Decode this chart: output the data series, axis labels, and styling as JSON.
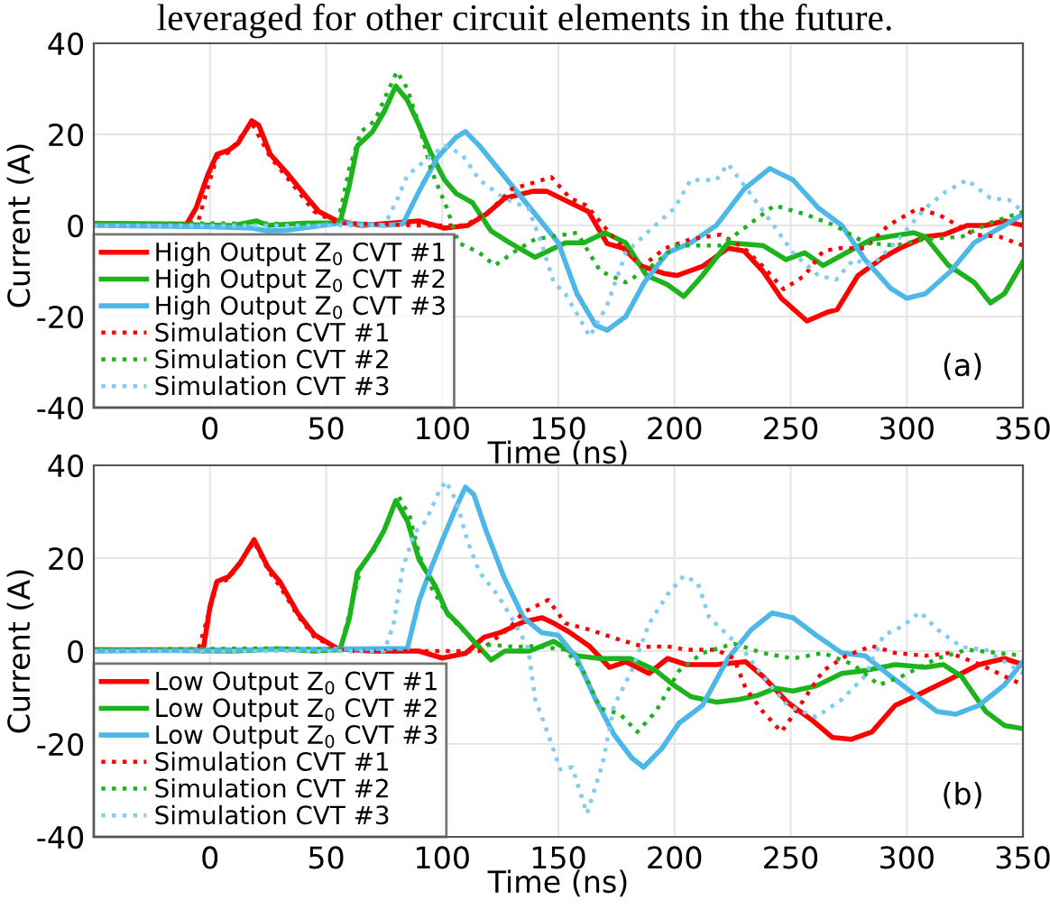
{
  "chart_data": [
    {
      "type": "line",
      "title": "leveraged for other circuit elements in the future.",
      "xlabel": "Time (ns)",
      "ylabel": "Current (A)",
      "xlim": [
        -50,
        350
      ],
      "ylim": [
        -40,
        40
      ],
      "xticks": [
        0,
        50,
        100,
        150,
        200,
        250,
        300,
        350
      ],
      "yticks": [
        -40,
        -20,
        0,
        20,
        40
      ],
      "grid": true,
      "legend": "bottom left",
      "annotations": [
        "(a)"
      ],
      "series": [
        {
          "name": "High Output Z$_{0}$ CVT #1",
          "color": "#ff0000",
          "line_style": "solid",
          "x": [
            -50,
            -10,
            -6,
            -1,
            3,
            8,
            12,
            18,
            21,
            26,
            34,
            42,
            47,
            54,
            65,
            90,
            101,
            111,
            119,
            127,
            139,
            145,
            155,
            163,
            171,
            178,
            186,
            196,
            201,
            212,
            223,
            230,
            238,
            246,
            257,
            266,
            270,
            279,
            290,
            297,
            308,
            316,
            326,
            334,
            342,
            350
          ],
          "values": [
            0.4,
            0.3,
            3.8,
            11,
            15.6,
            16.5,
            18,
            23,
            22,
            15.6,
            11,
            6,
            3,
            1.2,
            0,
            1,
            -0.6,
            0,
            2.5,
            6,
            7.5,
            7.5,
            5,
            3,
            -4,
            -5,
            -9,
            -10.6,
            -11,
            -9,
            -5,
            -5.6,
            -10,
            -16,
            -21,
            -19,
            -18.5,
            -11,
            -7,
            -5,
            -2.5,
            -2,
            0,
            0,
            1,
            0
          ]
        },
        {
          "name": "High Output Z$_{0}$ CVT #2",
          "color": "#1db31d",
          "line_style": "solid",
          "x": [
            -50,
            10,
            20,
            25,
            40,
            56,
            60,
            63.5,
            70,
            75,
            80,
            85,
            90,
            95,
            101,
            106,
            113,
            121,
            129,
            140,
            153,
            161,
            170,
            179,
            188,
            197,
            204,
            212,
            223,
            238,
            248,
            256,
            264,
            274,
            285,
            303,
            308,
            318,
            329,
            336,
            342,
            350
          ],
          "values": [
            0.5,
            0,
            1,
            0,
            0.5,
            0.6,
            8.8,
            17.5,
            20.6,
            25,
            30.6,
            27.5,
            22,
            16,
            10,
            7,
            5,
            -1.2,
            -3.8,
            -7,
            -3.8,
            -3.8,
            -1.6,
            -3.8,
            -11,
            -13,
            -15.6,
            -11,
            -3.8,
            -4.4,
            -7.5,
            -6,
            -8.8,
            -6,
            -3,
            -1.6,
            -2.5,
            -8.8,
            -12.5,
            -17,
            -15,
            -8
          ]
        },
        {
          "name": "High Output Z$_{0}$ CVT #3",
          "color": "#4db8e8",
          "line_style": "solid",
          "x": [
            -50,
            0,
            18,
            25,
            34,
            44,
            57,
            75,
            83,
            90,
            98,
            106,
            110,
            116,
            124,
            132,
            140,
            150,
            158,
            166,
            171,
            179,
            187,
            197,
            207,
            218,
            230,
            241,
            251,
            262,
            272,
            282,
            293,
            300,
            308,
            319,
            329,
            342,
            350
          ],
          "values": [
            0,
            -0.3,
            -0.6,
            -1.2,
            -1,
            -0.3,
            0.6,
            0,
            0.3,
            7.5,
            15,
            19.4,
            20.6,
            17.5,
            12.5,
            7.5,
            2.5,
            -3.8,
            -15,
            -21.9,
            -23,
            -20,
            -12.5,
            -6,
            -3.8,
            0,
            8,
            12.5,
            10,
            3.8,
            0,
            -7.5,
            -13.8,
            -16,
            -15,
            -10,
            -3.8,
            0,
            2.5
          ]
        },
        {
          "name": "Simulation CVT #1",
          "color": "#ff0000",
          "line_style": "dotted",
          "x": [
            -50,
            -10,
            -5,
            0,
            3,
            8,
            18,
            26,
            34,
            45,
            55,
            70,
            90,
            100,
            110,
            120,
            130,
            140,
            147,
            155,
            162,
            171,
            178,
            186,
            196,
            207,
            220,
            230,
            238,
            247,
            256,
            264,
            271,
            282,
            292,
            305,
            315,
            329,
            340,
            350
          ],
          "values": [
            0.3,
            0.3,
            1,
            10,
            15,
            16,
            22.5,
            15,
            10,
            3,
            0.5,
            0.3,
            0,
            0,
            0,
            3,
            8,
            9.5,
            10.6,
            6,
            4.4,
            -1,
            -5,
            -9,
            -5,
            -3,
            -2,
            -5,
            -9,
            -14,
            -11,
            -5.6,
            -5,
            -5,
            0,
            3.8,
            2,
            -2,
            -2.5,
            -4.4
          ]
        },
        {
          "name": "Simulation CVT #2",
          "color": "#1db31d",
          "line_style": "dotted",
          "x": [
            -50,
            20,
            40,
            55,
            60,
            65,
            71,
            76,
            80.5,
            85,
            90,
            95,
            102,
            107,
            116,
            122.6,
            131.6,
            140,
            158,
            168,
            179,
            189,
            201,
            220,
            230,
            243,
            256,
            269,
            282,
            295,
            308,
            323.5,
            336,
            350
          ],
          "values": [
            0.3,
            0.5,
            0.3,
            0.5,
            12.5,
            20.6,
            23,
            28.8,
            33.8,
            30,
            22,
            12.5,
            3.8,
            -3.8,
            -6,
            -8.8,
            -5.6,
            -3,
            -1.6,
            -10,
            -12.5,
            -9.4,
            -4.4,
            -4.4,
            -0.6,
            4.4,
            2.5,
            0,
            -3.8,
            -4.4,
            -3,
            -2.5,
            0.6,
            3
          ]
        },
        {
          "name": "Simulation CVT #3",
          "color": "#7fcdf0",
          "line_style": "dotted",
          "x": [
            -50,
            75,
            80,
            85,
            93,
            101,
            108.5,
            116,
            126.5,
            137,
            142.7,
            148,
            153,
            158,
            163.5,
            171,
            179,
            189,
            200,
            207,
            218,
            223,
            230,
            241,
            251,
            262,
            269.6,
            277,
            285,
            295,
            308,
            317,
            326,
            336,
            344,
            350
          ],
          "values": [
            0,
            0,
            5,
            11,
            14.4,
            17.5,
            15.6,
            10,
            6,
            3.8,
            -3.8,
            -12.5,
            -15,
            -19.4,
            -24.4,
            -17.5,
            -6,
            -1.2,
            3.8,
            10,
            10,
            13.5,
            8.8,
            1.2,
            -6,
            -11,
            -11.9,
            -7.5,
            -8.8,
            -3.8,
            3.8,
            7.5,
            10,
            6,
            5.6,
            3
          ]
        }
      ]
    },
    {
      "type": "line",
      "xlabel": "Time (ns)",
      "ylabel": "Current (A)",
      "xlim": [
        -50,
        350
      ],
      "ylim": [
        -40,
        40
      ],
      "xticks": [
        0,
        50,
        100,
        150,
        200,
        250,
        300,
        350
      ],
      "yticks": [
        -40,
        -20,
        0,
        20,
        40
      ],
      "grid": true,
      "legend": "bottom left",
      "annotations": [
        "(b)"
      ],
      "series": [
        {
          "name": "Low Output Z$_{0}$ CVT #1",
          "color": "#ff0000",
          "line_style": "solid",
          "x": [
            -50,
            -5,
            -3,
            0,
            3,
            8,
            13,
            19,
            25,
            30,
            38,
            45,
            50,
            55,
            70,
            90,
            100,
            110,
            118,
            125,
            135,
            143,
            148,
            155,
            163.5,
            172,
            179,
            189,
            197,
            205,
            218,
            230.6,
            238,
            248.6,
            259,
            268,
            276,
            285,
            295,
            305.7,
            318.7,
            331,
            342,
            350
          ],
          "values": [
            0.3,
            0.3,
            0,
            9.5,
            15,
            16,
            19,
            24,
            18,
            15,
            8,
            3.5,
            2,
            0.5,
            0,
            0,
            -1.5,
            -0.5,
            3,
            4,
            6.3,
            7.2,
            6,
            4,
            1,
            -3.5,
            -2.3,
            -4.8,
            -1.6,
            -2.9,
            -2.9,
            -2.3,
            -5.4,
            -11,
            -14.8,
            -18.6,
            -19,
            -17.4,
            -11.7,
            -9.2,
            -6,
            -2.9,
            -1.6,
            -2.9
          ]
        },
        {
          "name": "Low Output Z$_{0}$ CVT #2",
          "color": "#1db31d",
          "line_style": "solid",
          "x": [
            -50,
            10,
            30,
            45,
            56,
            60,
            63.5,
            70,
            75,
            80,
            85,
            90,
            97,
            102,
            108.5,
            115,
            121,
            127,
            137.5,
            148,
            158,
            168,
            181,
            192,
            199.6,
            207,
            218,
            228,
            236,
            243.5,
            251,
            261,
            272,
            282,
            295,
            308,
            315.6,
            323.5,
            334,
            342,
            350
          ],
          "values": [
            0.3,
            0,
            0.5,
            0,
            0.3,
            7,
            17,
            21.6,
            26,
            32.4,
            28,
            19.7,
            14,
            8.3,
            5,
            1.3,
            -1.9,
            0,
            0,
            2.1,
            -1,
            -1.6,
            -1.6,
            -4.2,
            -7.3,
            -9.8,
            -11,
            -10.4,
            -9.5,
            -8,
            -8.6,
            -7.5,
            -4.8,
            -4.2,
            -2.9,
            -3.5,
            -2.9,
            -5.4,
            -13,
            -16,
            -16.7
          ]
        },
        {
          "name": "Low Output Z$_{0}$ CVT #3",
          "color": "#4db8e8",
          "line_style": "solid",
          "x": [
            -50,
            85,
            90,
            95.6,
            100.8,
            106,
            110,
            113.6,
            118.8,
            126.5,
            135,
            142.7,
            150,
            158,
            166,
            174,
            181.6,
            186.7,
            194.5,
            202,
            212,
            223,
            233,
            242,
            251,
            261,
            272,
            282,
            293,
            303,
            313,
            321,
            331,
            342,
            350
          ],
          "values": [
            0,
            0.6,
            10.8,
            18.4,
            24.8,
            31,
            35.3,
            33.7,
            26,
            16,
            7.2,
            4,
            3.4,
            -1.6,
            -10.4,
            -18,
            -23,
            -25,
            -21,
            -15.5,
            -11.7,
            -1.6,
            4.6,
            8.2,
            7.2,
            3.4,
            -0.4,
            -1,
            -5.4,
            -9.2,
            -13,
            -13.6,
            -11.7,
            -7.3,
            -2.3
          ]
        },
        {
          "name": "Simulation CVT #1",
          "color": "#ff0000",
          "line_style": "dotted",
          "x": [
            -50,
            -5,
            0,
            3,
            8,
            19,
            25,
            30,
            38,
            45,
            55,
            60,
            100,
            116,
            129,
            135,
            145.7,
            153,
            163.5,
            176.6,
            187,
            197,
            205,
            218,
            225.6,
            230.6,
            238,
            246,
            254,
            264,
            274,
            285,
            295,
            308,
            318.7,
            331.5,
            342,
            350
          ],
          "values": [
            0.3,
            0.3,
            9,
            14.5,
            15.5,
            23.5,
            17.5,
            14,
            7.5,
            3,
            0.5,
            0,
            0,
            0,
            5,
            8.4,
            11,
            6,
            4.6,
            2.4,
            0.9,
            1,
            0.3,
            0.3,
            -1.6,
            -8,
            -13,
            -17.4,
            -11.7,
            -4.2,
            -1,
            1.1,
            -0.4,
            -1,
            -0.4,
            -2.9,
            -5.4,
            -7.3
          ]
        },
        {
          "name": "Simulation CVT #2",
          "color": "#1db31d",
          "line_style": "dotted",
          "x": [
            -50,
            30,
            56,
            60,
            65,
            71,
            76,
            81,
            86,
            90,
            95,
            102,
            108,
            115,
            122.6,
            131.6,
            140,
            153,
            160.6,
            168,
            176.6,
            184,
            192,
            202,
            212,
            225.6,
            238,
            251,
            264,
            277,
            288,
            298,
            313,
            326,
            339,
            350
          ],
          "values": [
            0.3,
            0.6,
            0.3,
            8,
            18,
            22,
            27,
            33.5,
            29,
            21,
            14,
            8,
            5,
            1.3,
            1.3,
            0.9,
            1.1,
            0.3,
            -4.2,
            -12.3,
            -13.6,
            -17.4,
            -13,
            -4.2,
            -0.4,
            1.6,
            -0.4,
            -1.6,
            -0.4,
            -2.9,
            -7.3,
            -5.4,
            -1.6,
            0.3,
            -0.4,
            -1
          ]
        },
        {
          "name": "Simulation CVT #3",
          "color": "#7fcdf0",
          "line_style": "dotted",
          "x": [
            -50,
            75,
            79,
            83,
            88,
            93,
            98,
            101.5,
            106,
            111,
            116,
            124,
            131.6,
            137,
            140,
            145.7,
            150.8,
            156,
            162.3,
            169,
            174,
            181.6,
            189,
            197,
            204,
            210,
            215,
            223,
            230.6,
            238,
            248.6,
            261,
            272,
            282,
            290,
            298,
            305.7,
            313,
            323.5,
            334,
            344,
            350
          ],
          "values": [
            0,
            0,
            5.7,
            17.8,
            25.4,
            28,
            33.7,
            36.6,
            32.4,
            23.5,
            17,
            12,
            5.7,
            0.6,
            -10.4,
            -18,
            -25.5,
            -25,
            -35,
            -24.3,
            -11.7,
            -4.2,
            5.9,
            12.2,
            16.2,
            14.7,
            7.2,
            3.4,
            -0.4,
            -5.4,
            -11.7,
            -14.2,
            -10.4,
            -5.4,
            3.4,
            5.3,
            8.4,
            4.7,
            0.9,
            0.3,
            -2.9,
            -4.8
          ]
        }
      ]
    }
  ]
}
